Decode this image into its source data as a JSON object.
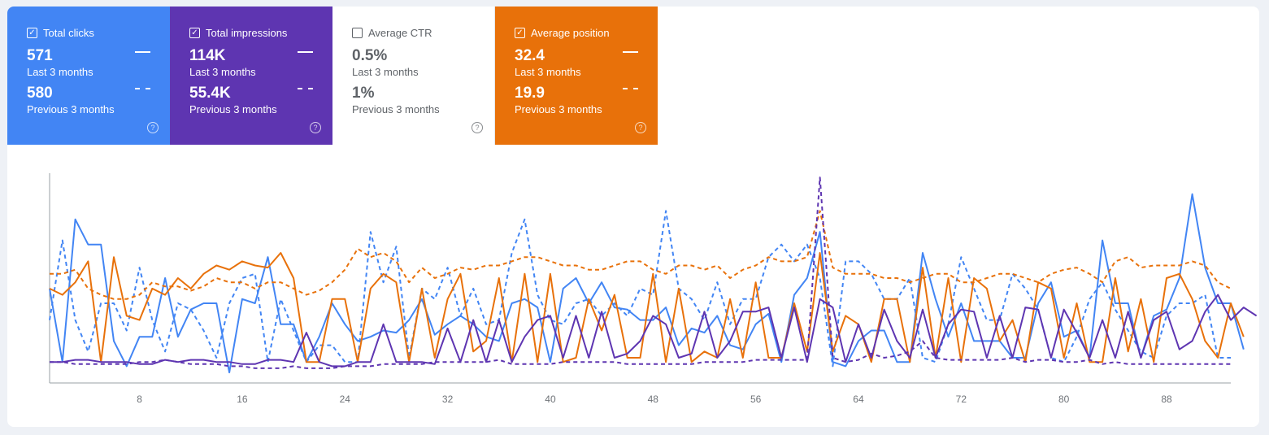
{
  "colors": {
    "clicks": "#4285f4",
    "impressions": "#5e35b1",
    "ctr": "#ffffff",
    "position": "#e8710a",
    "axis": "#9aa0a6"
  },
  "tiles": [
    {
      "key": "clicks",
      "label": "Total clicks",
      "checked": true,
      "current": "571",
      "current_label": "Last 3 months",
      "previous": "580",
      "previous_label": "Previous 3 months",
      "help_icon": "help-circle-icon"
    },
    {
      "key": "impressions",
      "label": "Total impressions",
      "checked": true,
      "current": "114K",
      "current_label": "Last 3 months",
      "previous": "55.4K",
      "previous_label": "Previous 3 months",
      "help_icon": "help-circle-icon"
    },
    {
      "key": "ctr",
      "label": "Average CTR",
      "checked": false,
      "current": "0.5%",
      "current_label": "Last 3 months",
      "previous": "1%",
      "previous_label": "Previous 3 months",
      "help_icon": "help-circle-icon"
    },
    {
      "key": "position",
      "label": "Average position",
      "checked": true,
      "current": "32.4",
      "current_label": "Last 3 months",
      "previous": "19.9",
      "previous_label": "Previous 3 months",
      "help_icon": "help-circle-icon"
    }
  ],
  "chart_data": {
    "type": "line",
    "x_ticks": [
      8,
      16,
      24,
      32,
      40,
      48,
      56,
      64,
      72,
      80,
      88
    ],
    "x_range": [
      1,
      93
    ],
    "y_range": [
      0,
      100
    ],
    "grid": false,
    "series": [
      {
        "key": "clicks",
        "style": "solid",
        "color": "#4285f4",
        "values": [
          45,
          10,
          78,
          66,
          66,
          20,
          8,
          22,
          22,
          50,
          22,
          35,
          38,
          38,
          5,
          40,
          38,
          60,
          28,
          28,
          10,
          22,
          38,
          28,
          20,
          22,
          25,
          24,
          30,
          40,
          23,
          28,
          32,
          28,
          22,
          20,
          38,
          40,
          36,
          10,
          45,
          50,
          38,
          48,
          36,
          35,
          30,
          30,
          36,
          18,
          26,
          24,
          32,
          18,
          16,
          28,
          33,
          10,
          42,
          50,
          72,
          10,
          8,
          20,
          25,
          25,
          10,
          10,
          62,
          40,
          22,
          38,
          20,
          20,
          20,
          12,
          12,
          38,
          48,
          22,
          25,
          12,
          68,
          38,
          38,
          12,
          32,
          35,
          50,
          90,
          55,
          38,
          38,
          16
        ]
      },
      {
        "key": "clicks",
        "style": "dashed",
        "color": "#4285f4",
        "values": [
          30,
          68,
          30,
          15,
          38,
          38,
          25,
          55,
          30,
          15,
          38,
          35,
          25,
          12,
          38,
          50,
          52,
          10,
          40,
          25,
          10,
          18,
          18,
          10,
          10,
          72,
          48,
          65,
          12,
          45,
          40,
          55,
          32,
          45,
          28,
          30,
          62,
          78,
          42,
          30,
          28,
          38,
          40,
          32,
          38,
          32,
          45,
          42,
          82,
          45,
          40,
          30,
          48,
          28,
          40,
          40,
          60,
          66,
          58,
          66,
          50,
          8,
          58,
          58,
          52,
          40,
          40,
          50,
          12,
          10,
          28,
          60,
          45,
          30,
          30,
          52,
          45,
          35,
          12,
          10,
          22,
          40,
          48,
          35,
          25,
          15,
          12,
          32,
          38,
          38,
          42,
          12,
          12
        ]
      },
      {
        "key": "position",
        "style": "solid",
        "color": "#e8710a",
        "values": [
          45,
          42,
          48,
          58,
          10,
          60,
          32,
          30,
          45,
          42,
          50,
          45,
          52,
          56,
          54,
          58,
          56,
          55,
          62,
          50,
          10,
          10,
          40,
          40,
          10,
          45,
          52,
          48,
          10,
          45,
          12,
          40,
          52,
          15,
          20,
          50,
          10,
          52,
          10,
          52,
          10,
          12,
          40,
          25,
          42,
          12,
          12,
          52,
          10,
          45,
          10,
          15,
          12,
          40,
          12,
          48,
          12,
          12,
          38,
          15,
          62,
          15,
          32,
          28,
          10,
          40,
          40,
          10,
          55,
          12,
          50,
          10,
          50,
          45,
          20,
          30,
          10,
          48,
          45,
          12,
          38,
          10,
          10,
          50,
          15,
          40,
          10,
          50,
          52,
          40,
          20,
          12,
          38,
          22
        ]
      },
      {
        "key": "position",
        "style": "dashed",
        "color": "#e8710a",
        "values": [
          52,
          52,
          54,
          45,
          42,
          40,
          40,
          42,
          48,
          46,
          46,
          44,
          46,
          50,
          48,
          48,
          45,
          48,
          48,
          45,
          42,
          44,
          48,
          54,
          64,
          60,
          62,
          58,
          48,
          55,
          50,
          52,
          55,
          54,
          56,
          56,
          58,
          60,
          60,
          58,
          56,
          56,
          54,
          54,
          56,
          58,
          58,
          54,
          52,
          56,
          56,
          54,
          56,
          50,
          54,
          56,
          60,
          58,
          58,
          60,
          82,
          55,
          52,
          52,
          52,
          50,
          50,
          48,
          50,
          52,
          52,
          48,
          48,
          50,
          52,
          52,
          50,
          48,
          52,
          54,
          55,
          52,
          48,
          58,
          60,
          55,
          56,
          56,
          56,
          58,
          56,
          48,
          45
        ]
      },
      {
        "key": "impressions",
        "style": "solid",
        "color": "#5e35b1",
        "values": [
          10,
          10,
          11,
          11,
          10,
          10,
          10,
          9,
          9,
          11,
          10,
          11,
          11,
          10,
          10,
          9,
          9,
          11,
          11,
          10,
          24,
          10,
          8,
          8,
          10,
          10,
          28,
          10,
          10,
          10,
          9,
          26,
          10,
          30,
          10,
          30,
          10,
          22,
          30,
          32,
          12,
          32,
          12,
          34,
          12,
          14,
          20,
          32,
          28,
          12,
          14,
          34,
          12,
          20,
          34,
          34,
          36,
          12,
          36,
          10,
          40,
          36,
          10,
          28,
          12,
          35,
          20,
          12,
          35,
          12,
          28,
          35,
          34,
          12,
          32,
          12,
          36,
          35,
          12,
          35,
          24,
          12,
          30,
          12,
          34,
          12,
          30,
          34,
          16,
          20,
          34,
          42,
          30,
          36,
          32
        ]
      },
      {
        "key": "impressions",
        "style": "dashed",
        "color": "#5e35b1",
        "values": [
          10,
          10,
          9,
          9,
          9,
          9,
          9,
          10,
          10,
          11,
          10,
          9,
          9,
          9,
          8,
          8,
          7,
          7,
          7,
          8,
          7,
          7,
          7,
          8,
          8,
          8,
          9,
          9,
          9,
          9,
          10,
          10,
          10,
          10,
          10,
          11,
          9,
          9,
          9,
          9,
          10,
          10,
          10,
          10,
          10,
          9,
          9,
          9,
          9,
          9,
          9,
          10,
          10,
          10,
          10,
          11,
          11,
          11,
          11,
          11,
          98,
          12,
          10,
          11,
          14,
          12,
          13,
          15,
          20,
          12,
          11,
          11,
          11,
          11,
          11,
          12,
          10,
          11,
          11,
          10,
          10,
          11,
          9,
          10,
          9,
          9,
          9,
          9,
          9,
          9,
          9,
          9,
          9
        ]
      }
    ]
  }
}
